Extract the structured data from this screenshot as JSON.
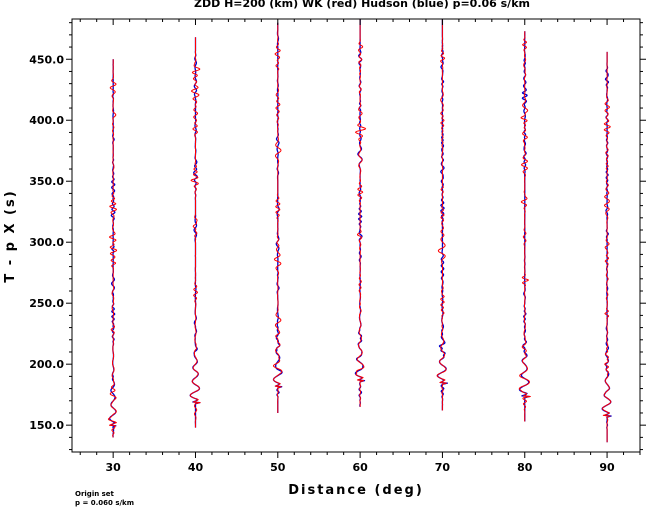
{
  "chart_data": {
    "type": "line",
    "title": "ZDD H=200 (km) WK (red) Hudson (blue) p=0.06 s/km",
    "xlabel": "Distance (deg)",
    "ylabel": "T - p X (s)",
    "xlim": [
      25,
      94
    ],
    "ylim": [
      128,
      483
    ],
    "xticks": [
      "30",
      "40",
      "50",
      "60",
      "70",
      "80",
      "90"
    ],
    "yticks": [
      "150.0",
      "200.0",
      "250.0",
      "300.0",
      "350.0",
      "400.0",
      "450.0"
    ],
    "grid": false,
    "series": [
      {
        "name": "WK",
        "color": "#ff0000",
        "traces": [
          {
            "distance": 30,
            "t_start": 140,
            "t_end": 450,
            "arrival": 150.0,
            "amp": 2.0
          },
          {
            "distance": 40,
            "t_start": 148,
            "t_end": 468,
            "arrival": 169.0,
            "amp": 2.8
          },
          {
            "distance": 50,
            "t_start": 160,
            "t_end": 480,
            "arrival": 182.0,
            "amp": 2.4
          },
          {
            "distance": 60,
            "t_start": 165,
            "t_end": 483,
            "arrival": 187.0,
            "amp": 2.5
          },
          {
            "distance": 70,
            "t_start": 162,
            "t_end": 483,
            "arrival": 185.0,
            "amp": 2.6
          },
          {
            "distance": 80,
            "t_start": 153,
            "t_end": 473,
            "arrival": 174.0,
            "amp": 3.0
          },
          {
            "distance": 90,
            "t_start": 136,
            "t_end": 456,
            "arrival": 158.0,
            "amp": 2.6
          }
        ]
      },
      {
        "name": "Hudson",
        "color": "#0000cc",
        "traces": [
          {
            "distance": 30,
            "t_start": 140,
            "t_end": 450,
            "arrival": 150.0,
            "amp": 2.0
          },
          {
            "distance": 40,
            "t_start": 148,
            "t_end": 468,
            "arrival": 169.0,
            "amp": 2.8
          },
          {
            "distance": 50,
            "t_start": 160,
            "t_end": 480,
            "arrival": 182.0,
            "amp": 2.4
          },
          {
            "distance": 60,
            "t_start": 165,
            "t_end": 483,
            "arrival": 187.0,
            "amp": 2.5
          },
          {
            "distance": 70,
            "t_start": 162,
            "t_end": 483,
            "arrival": 185.0,
            "amp": 2.6
          },
          {
            "distance": 80,
            "t_start": 153,
            "t_end": 473,
            "arrival": 174.0,
            "amp": 3.0
          },
          {
            "distance": 90,
            "t_start": 136,
            "t_end": 456,
            "arrival": 158.0,
            "amp": 2.6
          }
        ]
      }
    ],
    "annotations": [
      "Origin set",
      "p = 0.060 s/km"
    ]
  }
}
